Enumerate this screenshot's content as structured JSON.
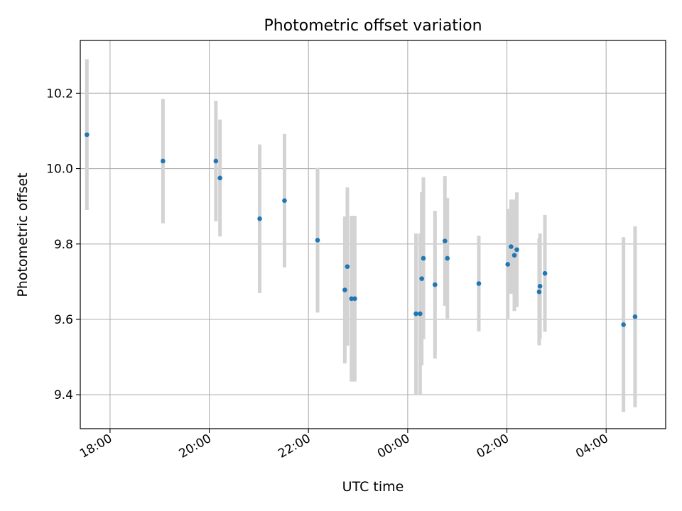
{
  "chart_data": {
    "type": "scatter",
    "title": "Photometric offset variation",
    "xlabel": "UTC time",
    "ylabel": "Photometric offset",
    "x_is_time": true,
    "xlim": [
      "17:24",
      "05:12"
    ],
    "ylim": [
      9.31,
      10.34
    ],
    "x_ticks": [
      "18:00",
      "20:00",
      "22:00",
      "00:00",
      "02:00",
      "04:00"
    ],
    "y_ticks": [
      "9.4",
      "9.6",
      "9.8",
      "10.0",
      "10.2"
    ],
    "grid": true,
    "colors": {
      "point": "#1f77b4",
      "errorbar": "#d3d3d3",
      "grid": "#b0b0b0"
    },
    "points": [
      {
        "x": "17:32",
        "y": 10.09,
        "err": 0.2
      },
      {
        "x": "19:04",
        "y": 10.02,
        "err": 0.165
      },
      {
        "x": "20:08",
        "y": 10.02,
        "err": 0.16
      },
      {
        "x": "20:13",
        "y": 9.975,
        "err": 0.155
      },
      {
        "x": "21:01",
        "y": 9.867,
        "err": 0.197
      },
      {
        "x": "21:31",
        "y": 9.915,
        "err": 0.177
      },
      {
        "x": "22:11",
        "y": 9.81,
        "err": 0.192
      },
      {
        "x": "22:44",
        "y": 9.678,
        "err": 0.195
      },
      {
        "x": "22:47",
        "y": 9.74,
        "err": 0.21
      },
      {
        "x": "22:52",
        "y": 9.655,
        "err": 0.22
      },
      {
        "x": "22:56",
        "y": 9.655,
        "err": 0.22
      },
      {
        "x": "00:10",
        "y": 9.615,
        "err": 0.213
      },
      {
        "x": "00:15",
        "y": 9.615,
        "err": 0.213
      },
      {
        "x": "00:17",
        "y": 9.708,
        "err": 0.23
      },
      {
        "x": "00:19",
        "y": 9.762,
        "err": 0.215
      },
      {
        "x": "00:33",
        "y": 9.692,
        "err": 0.196
      },
      {
        "x": "00:45",
        "y": 9.808,
        "err": 0.172
      },
      {
        "x": "00:48",
        "y": 9.762,
        "err": 0.16
      },
      {
        "x": "01:26",
        "y": 9.695,
        "err": 0.127
      },
      {
        "x": "02:01",
        "y": 9.746,
        "err": 0.147
      },
      {
        "x": "02:05",
        "y": 9.793,
        "err": 0.125
      },
      {
        "x": "02:09",
        "y": 9.77,
        "err": 0.148
      },
      {
        "x": "02:12",
        "y": 9.785,
        "err": 0.152
      },
      {
        "x": "02:39",
        "y": 9.673,
        "err": 0.142
      },
      {
        "x": "02:40",
        "y": 9.688,
        "err": 0.14
      },
      {
        "x": "02:46",
        "y": 9.722,
        "err": 0.155
      },
      {
        "x": "04:21",
        "y": 9.586,
        "err": 0.232
      },
      {
        "x": "04:35",
        "y": 9.607,
        "err": 0.24
      }
    ]
  }
}
